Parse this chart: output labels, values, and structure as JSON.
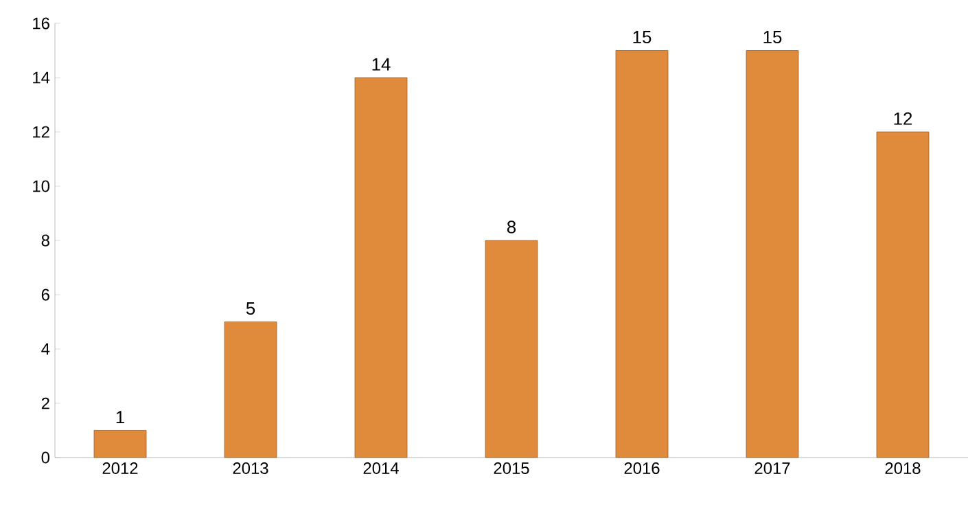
{
  "chart_data": {
    "type": "bar",
    "categories": [
      "2012",
      "2013",
      "2014",
      "2015",
      "2016",
      "2017",
      "2018"
    ],
    "values": [
      1,
      5,
      14,
      8,
      15,
      15,
      12
    ],
    "color": "#e08a3c",
    "ylim": [
      0,
      16
    ],
    "yticks": [
      0,
      2,
      4,
      6,
      8,
      10,
      12,
      14,
      16
    ],
    "grid": false,
    "data_labels": true
  }
}
